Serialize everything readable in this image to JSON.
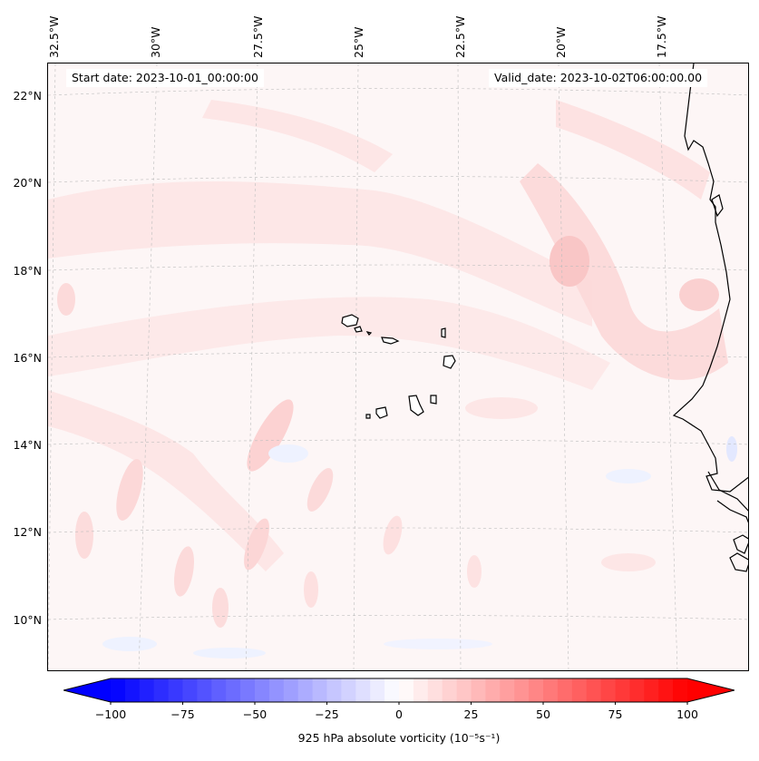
{
  "map": {
    "info": {
      "start_date": "Start date: 2023-10-01_00:00:00",
      "valid_date": "Valid_date: 2023-10-02T06:00:00.00"
    },
    "lon_labels": [
      "32.5°W",
      "30°W",
      "27.5°W",
      "25°W",
      "22.5°W",
      "20°W",
      "17.5°W"
    ],
    "lat_labels": [
      "22°N",
      "20°N",
      "18°N",
      "16°N",
      "14°N",
      "12°N",
      "10°N"
    ],
    "gridlines": "dashed light grey",
    "field_colors": {
      "background": "#fdf6f6",
      "light_positive": "#fde4e4",
      "moderate_positive": "#fcd2d2",
      "slight_negative": "#eef2ff",
      "coastline": "#000000"
    }
  },
  "colorbar": {
    "min": -100,
    "max": 100,
    "ticks": [
      "−100",
      "−75",
      "−50",
      "−25",
      "0",
      "25",
      "50",
      "75",
      "100"
    ],
    "tick_values": [
      -100,
      -75,
      -50,
      -25,
      0,
      25,
      50,
      75,
      100
    ],
    "label": "925 hPa absolute vorticity (10⁻⁵s⁻¹)",
    "colormap": "bwr",
    "extend": "both"
  }
}
